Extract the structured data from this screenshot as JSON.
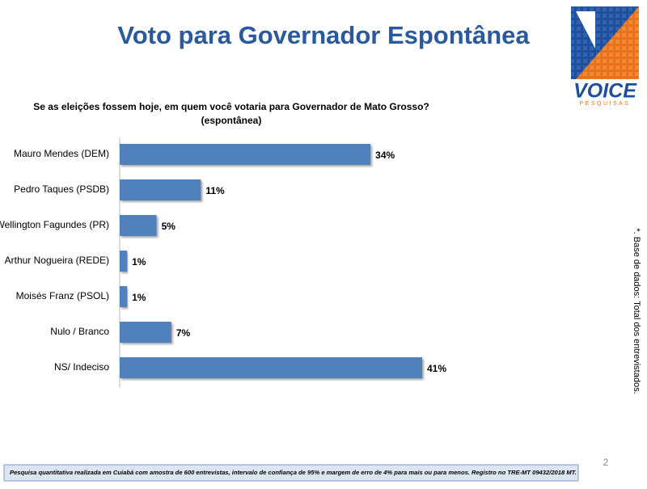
{
  "chart_data": {
    "type": "hbar",
    "title": "Voto para Governador Espontânea",
    "subtitle": [
      "Se as eleições fossem hoje, em quem você votaria para Governador de Mato Grosso?",
      "(espontânea)"
    ],
    "categories": [
      "Mauro Mendes (DEM)",
      "Pedro Taques (PSDB)",
      "Wellington Fagundes (PR)",
      "Arthur Nogueira (REDE)",
      "Moisés Franz (PSOL)",
      "Nulo / Branco",
      "NS/ Indeciso"
    ],
    "values": [
      34,
      11,
      5,
      1,
      1,
      7,
      41
    ],
    "value_labels": [
      "34%",
      "11%",
      "5%",
      "1%",
      "1%",
      "7%",
      "41%"
    ],
    "color": "#4f81bd"
  },
  "logo": {
    "name": "VOICE",
    "tagline": "PESQUISAS"
  },
  "side_note": "*. Base de dados: Total dos  entrevistados.",
  "footnote": "Pesquisa quantitativa realizada em Cuiabá com  amostra de 600 entrevistas, intervalo de confiança de 95% e margem de erro de 4% para mais ou para menos. Registro no TRE-MT 09432/2018 MT.",
  "page_number": "2"
}
